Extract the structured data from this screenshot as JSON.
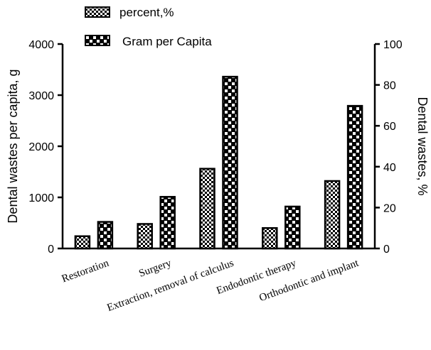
{
  "chart_data": {
    "type": "bar",
    "categories": [
      "Restoration",
      "Surgery",
      "Extraction, removal of calculus",
      "Endodontic  therapy",
      "Orthodontic and implant"
    ],
    "series": [
      {
        "name": "percent,%",
        "axis": "right",
        "values": [
          6,
          12,
          39,
          10,
          33
        ]
      },
      {
        "name": "Gram per Capita",
        "axis": "left",
        "values": [
          520,
          1010,
          3360,
          820,
          2790
        ]
      }
    ],
    "ylabel": "Dental wastes per capita, g",
    "ylim": [
      0,
      4000
    ],
    "yticks": [
      0,
      1000,
      2000,
      3000,
      4000
    ],
    "y2label": "Dental wastes, %",
    "y2lim": [
      0,
      100
    ],
    "y2ticks": [
      0,
      20,
      40,
      60,
      80,
      100
    ],
    "legend": "top-left",
    "grid": false
  }
}
